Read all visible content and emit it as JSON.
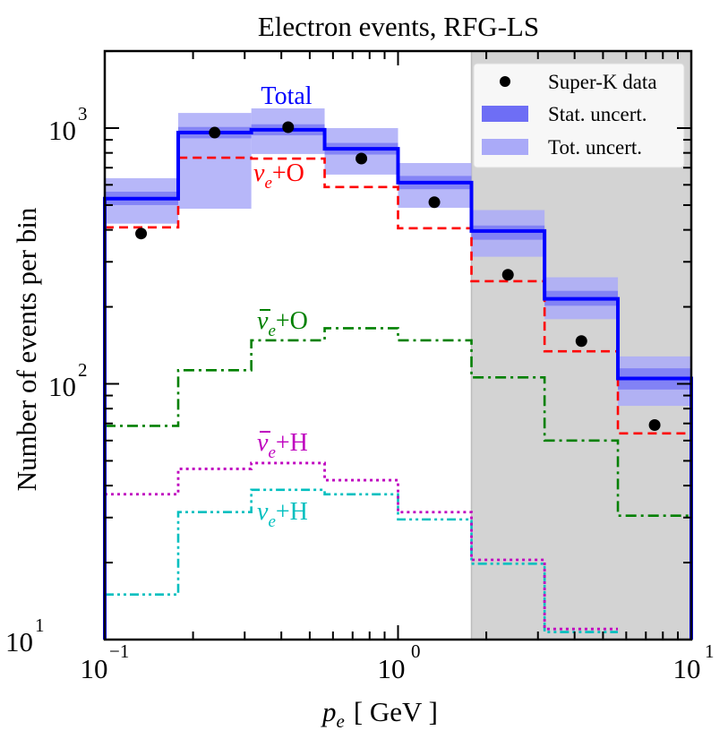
{
  "chart_data": {
    "type": "line",
    "title": "Electron events, RFG-LS",
    "xlabel_var": "p",
    "xlabel_sub": "e",
    "xlabel_unit": "[ GeV ]",
    "ylabel": "Number of events per bin",
    "xscale": "log",
    "yscale": "log",
    "xlim": [
      0.1,
      10
    ],
    "ylim": [
      10,
      2100
    ],
    "x_ticks": [
      {
        "value": 0.1,
        "base": "10",
        "exp": "−1"
      },
      {
        "value": 1,
        "base": "10",
        "exp": "0"
      },
      {
        "value": 10,
        "base": "10",
        "exp": "1"
      }
    ],
    "y_ticks": [
      {
        "value": 10,
        "base": "10",
        "exp": "1"
      },
      {
        "value": 100,
        "base": "10",
        "exp": "2"
      },
      {
        "value": 1000,
        "base": "10",
        "exp": "3"
      }
    ],
    "bin_edges": [
      0.1,
      0.178,
      0.316,
      0.562,
      1.0,
      1.78,
      3.16,
      5.62,
      10.0
    ],
    "shaded_region": {
      "x_from": 1.78,
      "x_to": 10.0,
      "color": "#d3d3d3"
    },
    "series": [
      {
        "name": "Total",
        "label": "Total",
        "color": "#0000ff",
        "style": "solid",
        "values": [
          530,
          960,
          985,
          830,
          612,
          396,
          215,
          105
        ]
      },
      {
        "name": "nue+O",
        "label_main": "ν",
        "label_sub": "e",
        "label_rest": "+O",
        "bar": false,
        "color": "#ff0000",
        "style": "dashed",
        "values": [
          409,
          766,
          760,
          588,
          406,
          252,
          134,
          64
        ]
      },
      {
        "name": "nuebar+O",
        "label_main": "ν",
        "label_sub": "e",
        "label_rest": "+O",
        "bar": true,
        "color": "#008000",
        "style": "dashdot",
        "values": [
          68.5,
          113,
          148,
          165,
          148,
          106,
          60,
          30.5
        ]
      },
      {
        "name": "nuebar+H",
        "label_main": "ν",
        "label_sub": "e",
        "label_rest": "+H",
        "bar": true,
        "color": "#bf00bf",
        "style": "dotted",
        "values": [
          37,
          46.5,
          49,
          42,
          31.5,
          20.5,
          11,
          null
        ]
      },
      {
        "name": "nue+H",
        "label_main": "ν",
        "label_sub": "e",
        "label_rest": "+H",
        "bar": false,
        "color": "#00bfbf",
        "style": "dashdotdot",
        "values": [
          15,
          31.5,
          38.5,
          37,
          29.5,
          19.8,
          10.7,
          null
        ]
      }
    ],
    "bands": {
      "tot_uncert": {
        "color": "#aaaaf8",
        "upper": [
          637,
          1146,
          1194,
          1000,
          730,
          478,
          261,
          128
        ],
        "lower": [
          423,
          484,
          792,
          658,
          488,
          314,
          179,
          82
        ]
      },
      "stat_uncert": {
        "color": "#6e6ef5",
        "upper": [
          564,
          1010,
          1035,
          875,
          650,
          416,
          231,
          115
        ],
        "lower": [
          500,
          912,
          937,
          788,
          577,
          366,
          202,
          95
        ]
      }
    },
    "data_points": {
      "name": "Super-K data",
      "x": [
        0.133,
        0.237,
        0.422,
        0.75,
        1.33,
        2.37,
        4.22,
        7.5
      ],
      "y": [
        387,
        960,
        1008,
        760,
        513,
        267,
        147,
        69
      ]
    },
    "legend": {
      "placement": "top-right",
      "entries": [
        {
          "marker": "dot",
          "label": "Super-K data"
        },
        {
          "marker": "stat-box",
          "label": "Stat. uncert."
        },
        {
          "marker": "tot-box",
          "label": "Tot. uncert."
        }
      ]
    }
  }
}
